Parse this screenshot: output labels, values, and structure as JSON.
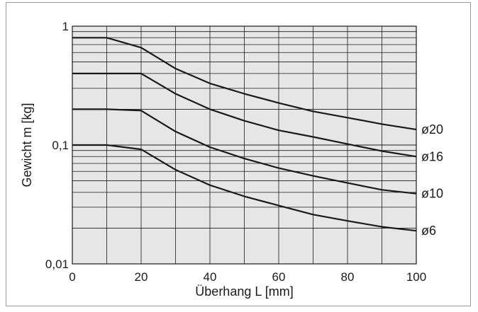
{
  "chart_data": {
    "type": "line",
    "title": "",
    "xlabel": "Überhang L [mm]",
    "ylabel": "Gewicht m [kg]",
    "xlim": [
      0,
      100
    ],
    "ylim": [
      0.01,
      1
    ],
    "yscale": "log",
    "grid": true,
    "x_tick_labels": [
      "0",
      "20",
      "40",
      "60",
      "80",
      "100"
    ],
    "y_tick_labels": [
      "0,01",
      "0,1",
      "1"
    ],
    "series": [
      {
        "name": "ø20",
        "x": [
          0,
          10,
          20,
          30,
          40,
          50,
          60,
          70,
          80,
          90,
          100
        ],
        "y": [
          0.8,
          0.8,
          0.66,
          0.44,
          0.33,
          0.27,
          0.226,
          0.192,
          0.17,
          0.15,
          0.135
        ]
      },
      {
        "name": "ø16",
        "x": [
          0,
          10,
          20,
          30,
          40,
          50,
          60,
          70,
          80,
          90,
          100
        ],
        "y": [
          0.4,
          0.4,
          0.4,
          0.27,
          0.2,
          0.16,
          0.133,
          0.117,
          0.102,
          0.089,
          0.08
        ]
      },
      {
        "name": "ø10",
        "x": [
          0,
          10,
          20,
          30,
          40,
          50,
          60,
          70,
          80,
          90,
          100
        ],
        "y": [
          0.2,
          0.2,
          0.195,
          0.13,
          0.096,
          0.077,
          0.064,
          0.055,
          0.048,
          0.042,
          0.039
        ]
      },
      {
        "name": "ø6",
        "x": [
          0,
          10,
          20,
          30,
          40,
          50,
          60,
          70,
          80,
          90,
          100
        ],
        "y": [
          0.1,
          0.1,
          0.092,
          0.062,
          0.046,
          0.037,
          0.031,
          0.026,
          0.023,
          0.0205,
          0.019
        ]
      }
    ],
    "colors": {
      "plot_background": "#e6e6e6",
      "line": "#1a1a1a",
      "grid": "#1a1a1a"
    }
  }
}
